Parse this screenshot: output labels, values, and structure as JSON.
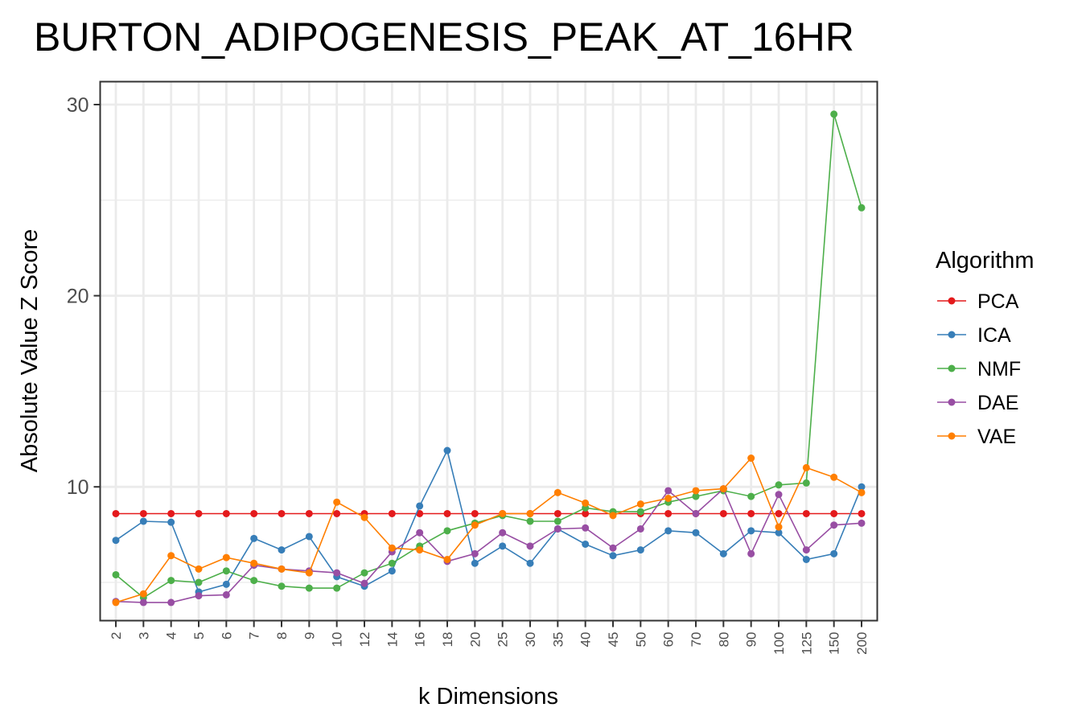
{
  "chart_data": {
    "type": "line",
    "title": "BURTON_ADIPOGENESIS_PEAK_AT_16HR",
    "xlabel": "k Dimensions",
    "ylabel": "Absolute Value Z Score",
    "categories": [
      "2",
      "3",
      "4",
      "5",
      "6",
      "7",
      "8",
      "9",
      "10",
      "12",
      "14",
      "16",
      "18",
      "20",
      "25",
      "30",
      "35",
      "40",
      "45",
      "50",
      "60",
      "70",
      "80",
      "90",
      "100",
      "125",
      "150",
      "200"
    ],
    "yticks": [
      10,
      20,
      30
    ],
    "ylim": [
      3.0,
      31.2
    ],
    "grid": true,
    "legend_title": "Algorithm",
    "legend_position": "right",
    "series": [
      {
        "name": "PCA",
        "color": "#e41a1c",
        "values": [
          8.6,
          8.6,
          8.6,
          8.6,
          8.6,
          8.6,
          8.6,
          8.6,
          8.6,
          8.6,
          8.6,
          8.6,
          8.6,
          8.6,
          8.6,
          8.6,
          8.6,
          8.6,
          8.6,
          8.6,
          8.6,
          8.6,
          8.6,
          8.6,
          8.6,
          8.6,
          8.6,
          8.6
        ]
      },
      {
        "name": "ICA",
        "color": "#377eb8",
        "values": [
          7.2,
          8.2,
          8.15,
          4.5,
          4.9,
          7.3,
          6.7,
          7.4,
          5.3,
          4.8,
          5.6,
          9.0,
          11.9,
          6.0,
          6.9,
          6.0,
          7.8,
          7.0,
          6.4,
          6.7,
          7.7,
          7.6,
          6.5,
          7.7,
          7.6,
          6.2,
          6.5,
          10.0
        ]
      },
      {
        "name": "NMF",
        "color": "#4daf4a",
        "values": [
          5.4,
          4.2,
          5.1,
          5.0,
          5.6,
          5.1,
          4.8,
          4.7,
          4.7,
          5.5,
          6.0,
          6.9,
          7.7,
          8.1,
          8.5,
          8.2,
          8.2,
          8.9,
          8.7,
          8.7,
          9.2,
          9.5,
          9.8,
          9.5,
          10.1,
          10.2,
          29.5,
          24.6
        ]
      },
      {
        "name": "DAE",
        "color": "#984ea3",
        "values": [
          4.0,
          3.95,
          3.95,
          4.3,
          4.35,
          5.9,
          5.7,
          5.6,
          5.5,
          4.95,
          6.6,
          7.6,
          6.1,
          6.5,
          7.6,
          6.9,
          7.8,
          7.85,
          6.8,
          7.8,
          9.8,
          8.6,
          9.9,
          6.5,
          9.6,
          6.7,
          8.0,
          8.1
        ]
      },
      {
        "name": "VAE",
        "color": "#ff7f00",
        "values": [
          3.95,
          4.4,
          6.4,
          5.7,
          6.3,
          6.0,
          5.7,
          5.5,
          9.2,
          8.4,
          6.8,
          6.7,
          6.2,
          8.0,
          8.6,
          8.6,
          9.7,
          9.15,
          8.5,
          9.1,
          9.4,
          9.8,
          9.9,
          11.5,
          7.9,
          11.0,
          10.5,
          9.7
        ]
      }
    ]
  }
}
